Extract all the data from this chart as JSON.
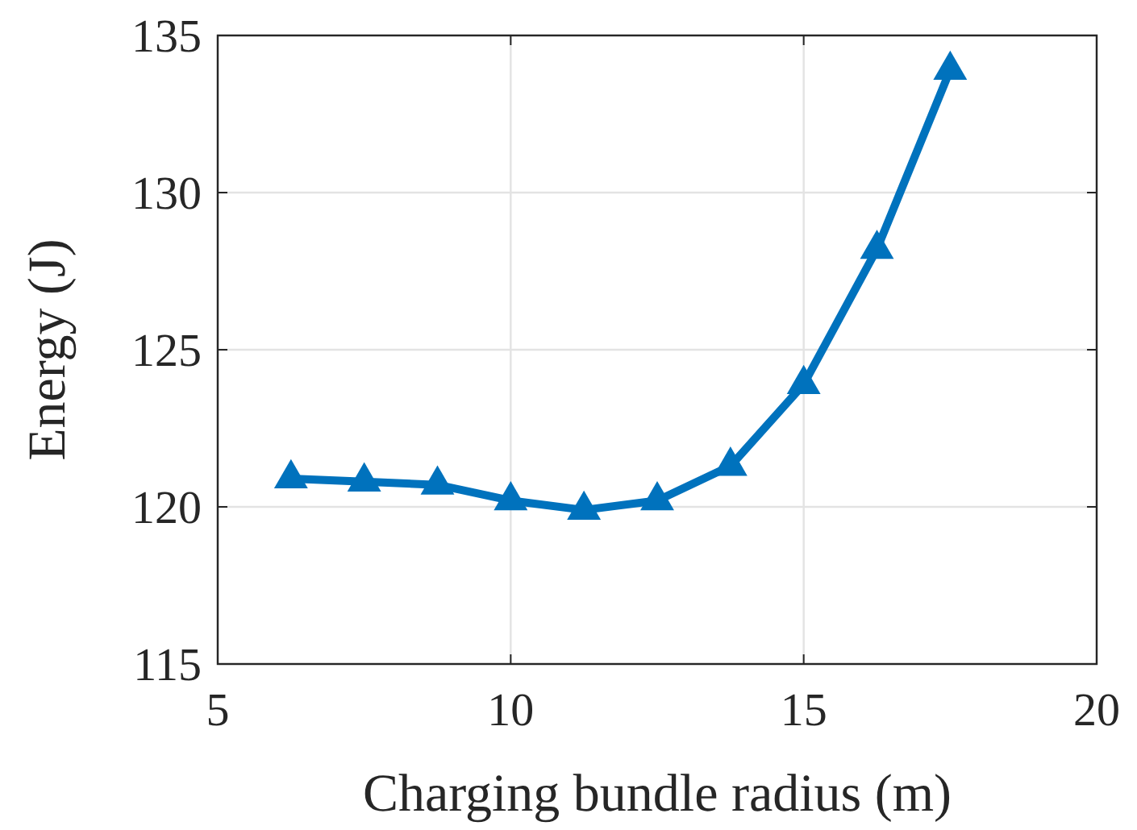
{
  "chart_data": {
    "type": "line",
    "xlabel": "Charging bundle radius (m)",
    "ylabel": "Energy (J)",
    "x": [
      6.25,
      7.5,
      8.75,
      10,
      11.25,
      12.5,
      13.75,
      15,
      16.25,
      17.5
    ],
    "series": [
      {
        "color": "#0072bd",
        "values": [
          120.9,
          120.8,
          120.7,
          120.2,
          119.9,
          120.2,
          121.3,
          123.9,
          128.2,
          133.9
        ]
      }
    ],
    "xlim": [
      5,
      20
    ],
    "xticks": [
      5,
      10,
      15,
      20
    ],
    "ylim": [
      115,
      135
    ],
    "yticks": [
      115,
      120,
      125,
      130,
      135
    ],
    "grid": true,
    "marker": "triangle",
    "line_style": "solid"
  }
}
